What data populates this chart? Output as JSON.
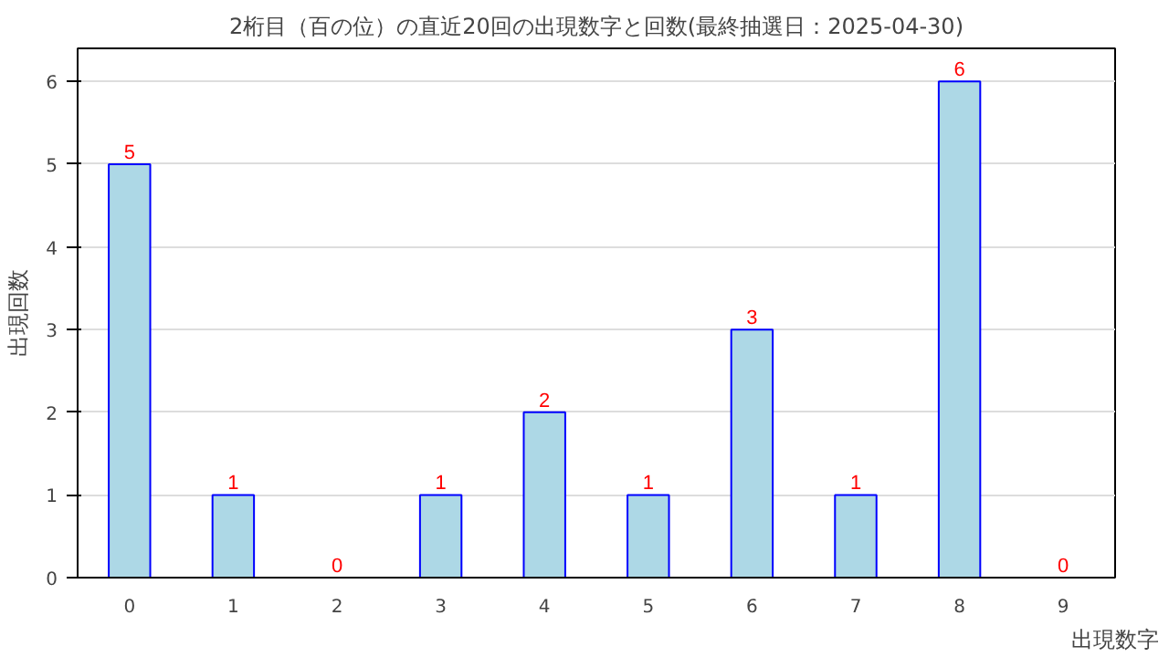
{
  "chart_data": {
    "type": "bar",
    "title": "2桁目（百の位）の直近20回の出現数字と回数(最終抽選日：2025-04-30)",
    "xlabel": "出現数字",
    "ylabel": "出現回数",
    "categories": [
      "0",
      "1",
      "2",
      "3",
      "4",
      "5",
      "6",
      "7",
      "8",
      "9"
    ],
    "series": [
      {
        "color": "#add8e6",
        "values": [
          5,
          1,
          0,
          1,
          2,
          1,
          3,
          1,
          6,
          0
        ]
      }
    ],
    "ylim": [
      0,
      6.4
    ],
    "yticks": [
      0,
      1,
      2,
      3,
      4,
      5,
      6
    ],
    "grid": "y",
    "data_labels": true
  }
}
